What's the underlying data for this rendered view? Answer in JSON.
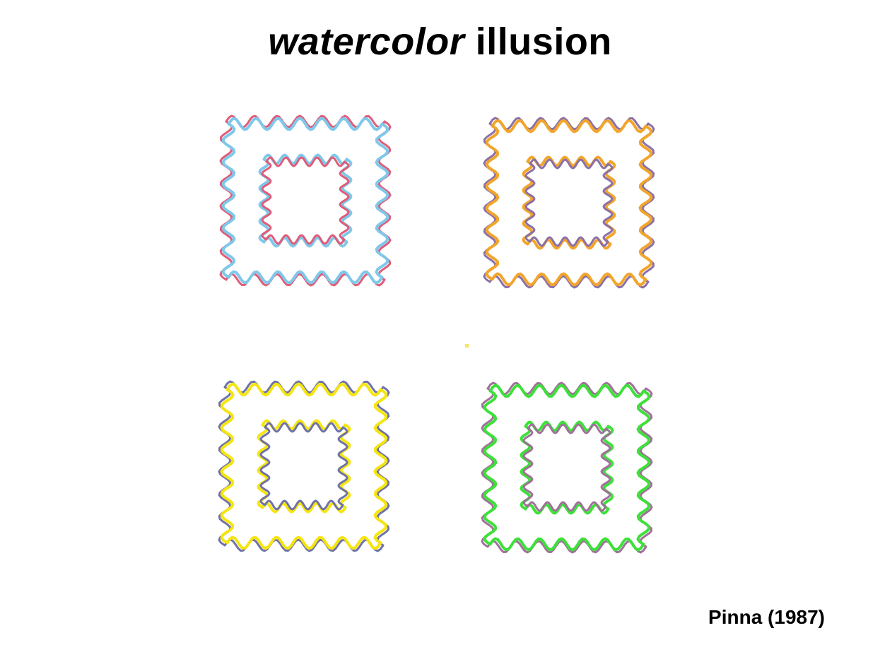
{
  "title": {
    "italic": "watercolor",
    "rest": "illusion"
  },
  "citation": "Pinna (1987)",
  "figures": [
    {
      "name": "blue-red-figure",
      "outer_color": "#e05c78",
      "inner_color": "#7fc8ea"
    },
    {
      "name": "orange-purple-figure",
      "outer_color": "#8a70a8",
      "inner_color": "#f2a52a"
    },
    {
      "name": "yellow-purple-figure",
      "outer_color": "#6f72a8",
      "inner_color": "#f5e510"
    },
    {
      "name": "green-purple-figure",
      "outer_color": "#a0709a",
      "inner_color": "#3ee03a"
    }
  ],
  "center_dot_color": "#f7e65a"
}
